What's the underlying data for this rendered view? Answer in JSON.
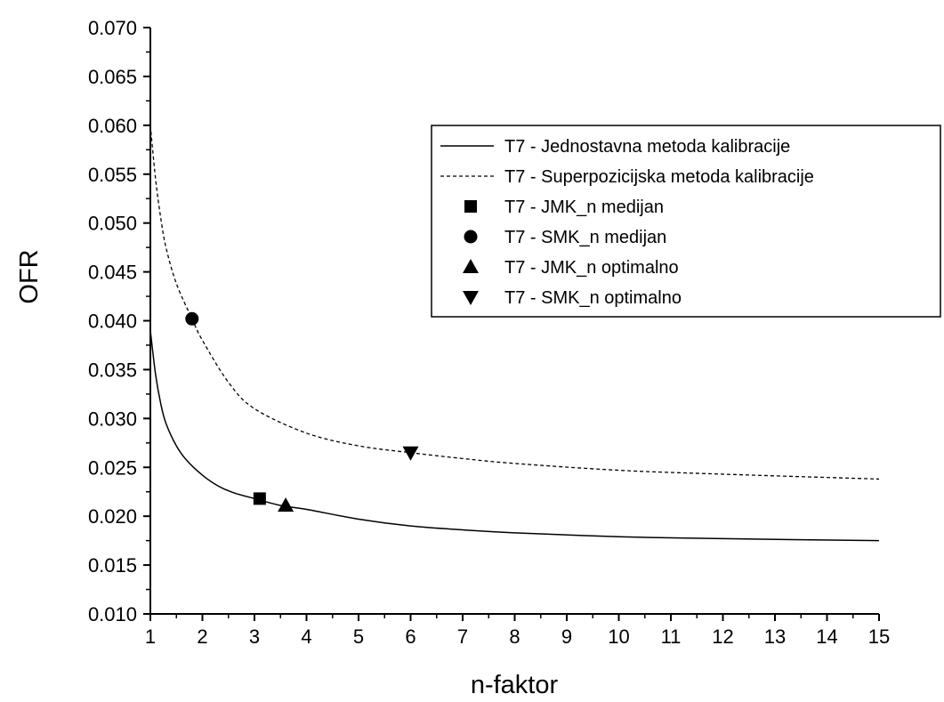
{
  "chart_data": {
    "type": "line",
    "title": "",
    "xlabel": "n-faktor",
    "ylabel": "OFR",
    "xlim": [
      1,
      15
    ],
    "ylim": [
      0.01,
      0.07
    ],
    "x_ticks": [
      "1",
      "2",
      "3",
      "4",
      "5",
      "6",
      "7",
      "8",
      "9",
      "10",
      "11",
      "12",
      "13",
      "14",
      "15"
    ],
    "y_ticks": [
      "0.010",
      "0.015",
      "0.020",
      "0.025",
      "0.030",
      "0.035",
      "0.040",
      "0.045",
      "0.050",
      "0.055",
      "0.060",
      "0.065",
      "0.070"
    ],
    "grid": false,
    "legend_position": "top-right",
    "series": [
      {
        "name": "T7 - Jednostavna metoda kalibracije",
        "style": "solid",
        "x": [
          1.0,
          1.1,
          1.2,
          1.3,
          1.5,
          1.7,
          2.0,
          2.3,
          2.6,
          3.0,
          3.5,
          4.0,
          5.0,
          6.0,
          7.0,
          8.0,
          10.0,
          12.0,
          15.0
        ],
        "y": [
          0.039,
          0.0345,
          0.0315,
          0.0295,
          0.0272,
          0.0257,
          0.0242,
          0.0231,
          0.0224,
          0.0218,
          0.0211,
          0.0207,
          0.0197,
          0.019,
          0.0186,
          0.0183,
          0.0179,
          0.0177,
          0.0175
        ]
      },
      {
        "name": "T7 - Superpozicijska metoda kalibracije",
        "style": "dashed",
        "x": [
          1.0,
          1.1,
          1.2,
          1.3,
          1.5,
          1.8,
          2.0,
          2.5,
          3.0,
          4.0,
          5.0,
          6.0,
          7.0,
          8.0,
          10.0,
          12.0,
          15.0
        ],
        "y": [
          0.06,
          0.0545,
          0.0505,
          0.0475,
          0.0438,
          0.0402,
          0.038,
          0.0337,
          0.031,
          0.0285,
          0.0272,
          0.0265,
          0.0259,
          0.0254,
          0.0247,
          0.0243,
          0.0238
        ]
      },
      {
        "name": "T7 - JMK_n medijan",
        "marker": "square",
        "x": [
          3.1
        ],
        "y": [
          0.0218
        ]
      },
      {
        "name": "T7 - SMK_n medijan",
        "marker": "circle",
        "x": [
          1.8
        ],
        "y": [
          0.0402
        ]
      },
      {
        "name": "T7 - JMK_n optimalno",
        "marker": "triangle-up",
        "x": [
          3.6
        ],
        "y": [
          0.0211
        ]
      },
      {
        "name": "T7 - SMK_n optimalno",
        "marker": "triangle-down",
        "x": [
          6.0
        ],
        "y": [
          0.0265
        ]
      }
    ]
  }
}
